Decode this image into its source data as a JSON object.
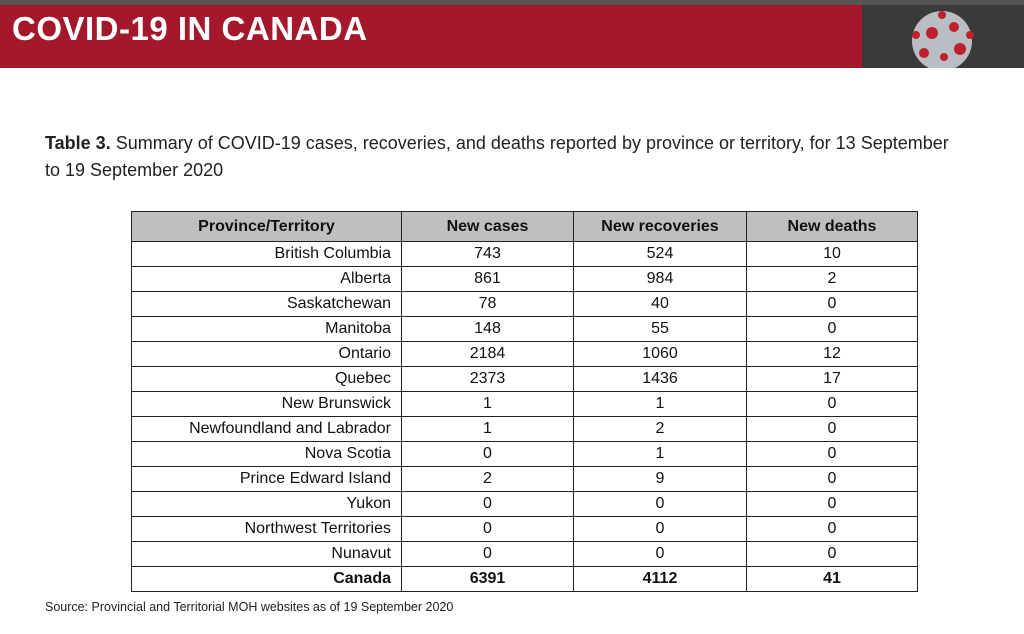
{
  "header": {
    "title": "COVID-19 IN CANADA"
  },
  "caption": {
    "label": "Table 3.",
    "text": "Summary of COVID-19 cases, recoveries, and deaths reported by province or territory, for 13 September to 19 September 2020"
  },
  "table": {
    "columns": [
      "Province/Territory",
      "New cases",
      "New recoveries",
      "New deaths"
    ],
    "rows": [
      [
        "British Columbia",
        743,
        524,
        10
      ],
      [
        "Alberta",
        861,
        984,
        2
      ],
      [
        "Saskatchewan",
        78,
        40,
        0
      ],
      [
        "Manitoba",
        148,
        55,
        0
      ],
      [
        "Ontario",
        2184,
        1060,
        12
      ],
      [
        "Quebec",
        2373,
        1436,
        17
      ],
      [
        "New Brunswick",
        1,
        1,
        0
      ],
      [
        "Newfoundland and Labrador",
        1,
        2,
        0
      ],
      [
        "Nova Scotia",
        0,
        1,
        0
      ],
      [
        "Prince Edward Island",
        2,
        9,
        0
      ],
      [
        "Yukon",
        0,
        0,
        0
      ],
      [
        "Northwest Territories",
        0,
        0,
        0
      ],
      [
        "Nunavut",
        0,
        0,
        0
      ]
    ],
    "total": [
      "Canada",
      6391,
      4112,
      41
    ]
  },
  "source": "Source: Provincial and Territorial MOH websites as of 19 September 2020"
}
